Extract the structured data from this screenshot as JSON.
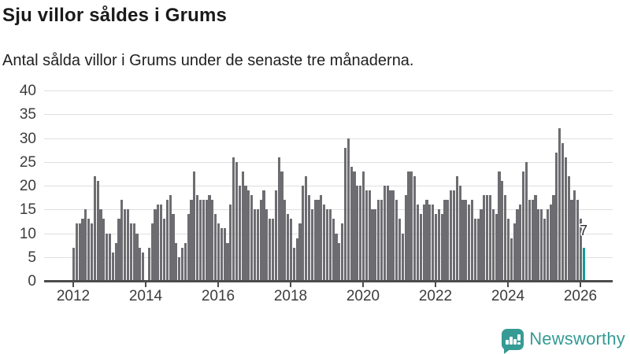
{
  "title": "Sju villor såldes i Grums",
  "subtitle": "Antal sålda villor i Grums under de senaste tre månaderna.",
  "annotation": {
    "last_value_label": "7"
  },
  "branding": {
    "name": "Newsworthy",
    "icon": "newsworthy-speech-bubble-chart-icon",
    "color": "#359b94"
  },
  "colors": {
    "bar": "#6d6d71",
    "highlight": "#149c93",
    "grid": "#dfdfdf",
    "axis": "#4c4c4c",
    "title_text": "#1a1a1a",
    "tick_text": "#3c3c3c"
  },
  "chart_data": {
    "type": "bar",
    "title": "Sju villor såldes i Grums",
    "subtitle": "Antal sålda villor i Grums under de senaste tre månaderna.",
    "frequency": "monthly",
    "x_start": "2012-01",
    "x_end": "2026-02",
    "x_tick_labels": [
      "2012",
      "2014",
      "2016",
      "2018",
      "2020",
      "2022",
      "2024",
      "2026"
    ],
    "y_ticks": [
      0,
      5,
      10,
      15,
      20,
      25,
      30,
      35,
      40
    ],
    "ylim": [
      0,
      40
    ],
    "grid": true,
    "legend": "none",
    "highlight_last_bar": true,
    "last_value_label": "7",
    "values": [
      7,
      12,
      12,
      13,
      15,
      13,
      12,
      22,
      21,
      15,
      13,
      10,
      10,
      6,
      8,
      13,
      17,
      15,
      15,
      12,
      12,
      10,
      7,
      6,
      0,
      7,
      12,
      15,
      16,
      16,
      13,
      17,
      18,
      14,
      8,
      5,
      7,
      8,
      14,
      17,
      23,
      18,
      17,
      17,
      17,
      18,
      17,
      14,
      12,
      11,
      11,
      8,
      16,
      26,
      25,
      20,
      23,
      20,
      19,
      18,
      15,
      15,
      17,
      19,
      15,
      13,
      13,
      19,
      26,
      23,
      17,
      14,
      13,
      7,
      9,
      12,
      20,
      22,
      18,
      15,
      17,
      17,
      18,
      16,
      15,
      15,
      13,
      10,
      8,
      12,
      28,
      30,
      24,
      23,
      20,
      20,
      23,
      19,
      19,
      15,
      15,
      17,
      17,
      20,
      20,
      19,
      19,
      17,
      13,
      10,
      18,
      23,
      23,
      22,
      16,
      14,
      16,
      17,
      16,
      16,
      14,
      15,
      14,
      17,
      17,
      19,
      19,
      22,
      20,
      17,
      17,
      16,
      17,
      13,
      13,
      15,
      18,
      18,
      18,
      15,
      14,
      23,
      21,
      18,
      13,
      9,
      12,
      15,
      16,
      23,
      25,
      17,
      17,
      18,
      15,
      15,
      13,
      15,
      16,
      18,
      27,
      32,
      29,
      26,
      22,
      17,
      19,
      17,
      13,
      7
    ]
  }
}
